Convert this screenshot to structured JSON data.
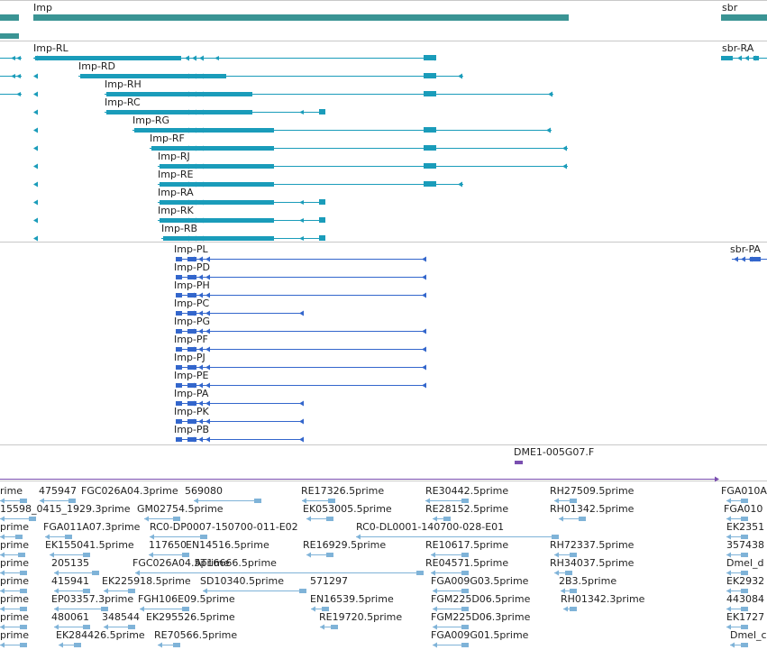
{
  "colors": {
    "gene": "#3a9494",
    "transcript": "#1a9cba",
    "protein": "#3366cc",
    "clone": "#7a4fb0",
    "est": "#7fb3d8",
    "divider": "#c8c8c8"
  },
  "genes": {
    "imp": "Imp",
    "sbr": "sbr"
  },
  "transcripts": [
    "Imp-RL",
    "Imp-RD",
    "Imp-RH",
    "Imp-RC",
    "Imp-RG",
    "Imp-RF",
    "Imp-RJ",
    "Imp-RE",
    "Imp-RA",
    "Imp-RK",
    "Imp-RB"
  ],
  "sbr_transcript": "sbr-RA",
  "proteins": [
    "Imp-PL",
    "Imp-PD",
    "Imp-PH",
    "Imp-PC",
    "Imp-PG",
    "Imp-PF",
    "Imp-PJ",
    "Imp-PE",
    "Imp-PA",
    "Imp-PK",
    "Imp-PB"
  ],
  "sbr_protein": "sbr-PA",
  "clone": "DME1-005G07.F",
  "est_rows": [
    [
      "rime",
      "475947",
      "FGC026A04.3prime",
      "569080",
      "RE17326.5prime",
      "RE30442.5prime",
      "RH27509.5prime",
      "FGA010A"
    ],
    [
      "15598_0415_1929.3prime",
      "GM02754.5prime",
      "EK053005.5prime",
      "RE28152.5prime",
      "RH01342.5prime",
      "FGA010"
    ],
    [
      "prime",
      "FGA011A07.3prime",
      "RC0-DP0007-150700-011-E02",
      "RC0-DL0001-140700-028-E01",
      "EK2351"
    ],
    [
      "prime",
      "EK155041.5prime",
      "117650",
      "EN14516.5prime",
      "RE16929.5prime",
      "RE10617.5prime",
      "RH72337.5prime",
      "357438"
    ],
    [
      "prime",
      "205135",
      "FGC026A04.5prime",
      "AT16666.5prime",
      "RE04571.5prime",
      "RH34037.5prime",
      "Dmel_d"
    ],
    [
      "prime",
      "415941",
      "EK225918.5prime",
      "SD10340.5prime",
      "571297",
      "FGA009G03.5prime",
      "2B3.5prime",
      "EK2932"
    ],
    [
      "prime",
      "EP03357.3prime",
      "FGH106E09.5prime",
      "EN16539.5prime",
      "FGM225D06.5prime",
      "RH01342.3prime",
      "443084"
    ],
    [
      "prime",
      "480061",
      "348544",
      "EK295526.5prime",
      "RE19720.5prime",
      "FGM225D06.3prime",
      "EK1727"
    ],
    [
      "prime",
      "EK284426.5prime",
      "RE70566.5prime",
      "FGA009G01.5prime",
      "Dmel_c"
    ]
  ]
}
